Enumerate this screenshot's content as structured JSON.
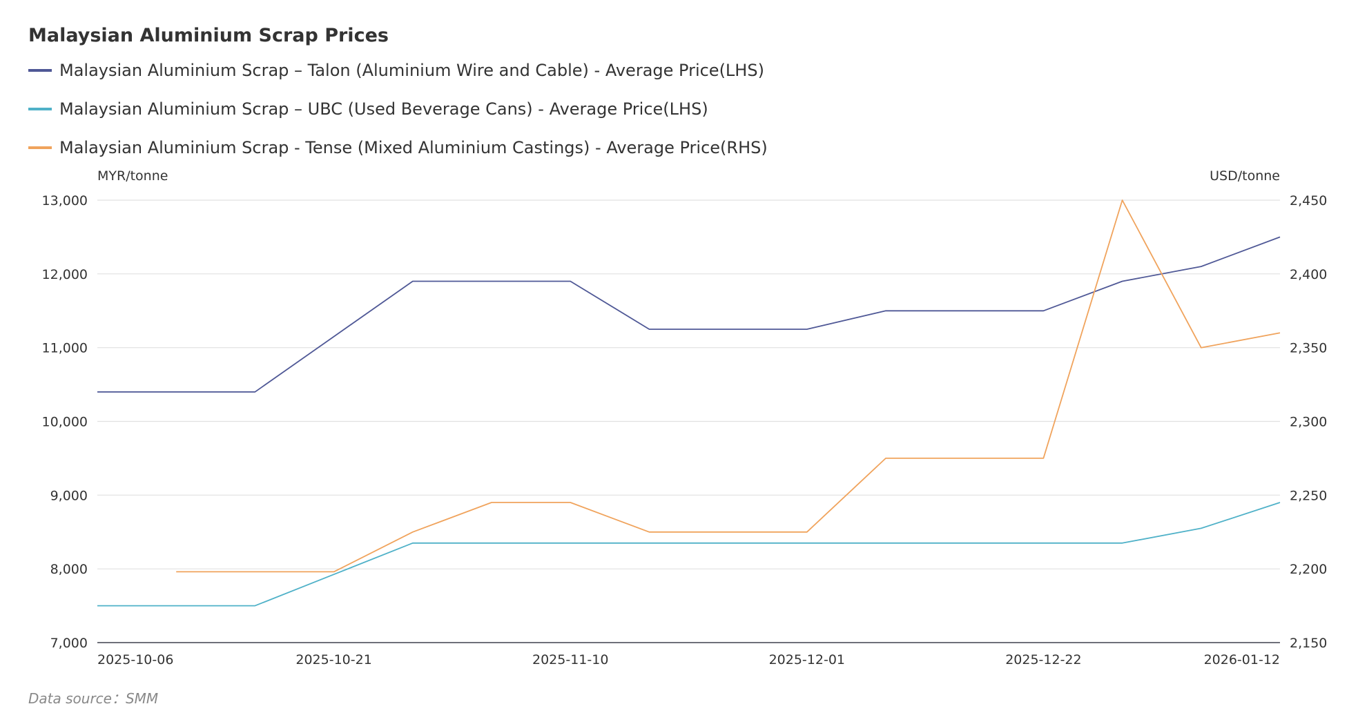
{
  "chart_data": {
    "type": "line",
    "title": "Malaysian Aluminium Scrap Prices",
    "categories": [
      "2025-10-06",
      "",
      "",
      "2025-10-21",
      "",
      "",
      "2025-11-10",
      "",
      "",
      "2025-12-01",
      "",
      "",
      "2025-12-22",
      "",
      "",
      "2026-01-12"
    ],
    "y_left": {
      "label": "MYR/tonne",
      "range": [
        7000,
        13000
      ],
      "ticks": [
        "7,000",
        "8,000",
        "9,000",
        "10,000",
        "11,000",
        "12,000",
        "13,000"
      ],
      "tick_values": [
        7000,
        8000,
        9000,
        10000,
        11000,
        12000,
        13000
      ]
    },
    "y_right": {
      "label": "USD/tonne",
      "range": [
        2150,
        2450
      ],
      "ticks": [
        "2,150",
        "2,200",
        "2,250",
        "2,300",
        "2,350",
        "2,400",
        "2,450"
      ],
      "tick_values": [
        2150,
        2200,
        2250,
        2300,
        2350,
        2400,
        2450
      ]
    },
    "grid": true,
    "legend_placement": "top-left",
    "series": [
      {
        "name": "Malaysian Aluminium Scrap – Talon (Aluminium Wire and Cable) - Average Price(LHS)",
        "axis": "left",
        "color": "#4f5896",
        "values": [
          10400,
          10400,
          10400,
          11150,
          11900,
          11900,
          11900,
          11250,
          11250,
          11250,
          11500,
          11500,
          11500,
          11900,
          12100,
          12500
        ]
      },
      {
        "name": "Malaysian Aluminium Scrap – UBC (Used Beverage Cans) - Average Price(LHS)",
        "axis": "left",
        "color": "#4fb1c8",
        "values": [
          7500,
          7500,
          7500,
          7925,
          8350,
          8350,
          8350,
          8350,
          8350,
          8350,
          8350,
          8350,
          8350,
          8350,
          8550,
          8900
        ]
      },
      {
        "name": "Malaysian Aluminium Scrap - Tense (Mixed Aluminium Castings) - Average Price(RHS)",
        "axis": "right",
        "color": "#f0a35c",
        "values": [
          null,
          2198,
          2198,
          2198,
          2225,
          2245,
          2245,
          2225,
          2225,
          2225,
          2275,
          2275,
          2275,
          2450,
          2350,
          2360
        ]
      }
    ]
  },
  "source": "Data source：SMM"
}
